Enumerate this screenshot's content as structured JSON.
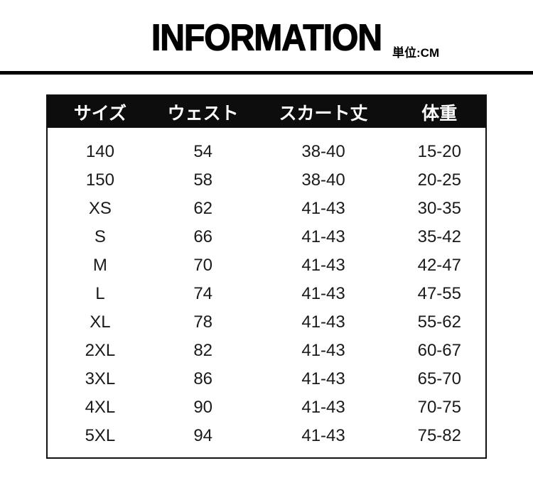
{
  "title": "INFORMATION",
  "unit_label": "単位:CM",
  "chart_data": {
    "type": "table",
    "title": "INFORMATION",
    "unit": "単位:CM",
    "columns": [
      "サイズ",
      "ウェスト",
      "スカート丈",
      "体重"
    ],
    "rows": [
      [
        "140",
        "54",
        "38-40",
        "15-20"
      ],
      [
        "150",
        "58",
        "38-40",
        "20-25"
      ],
      [
        "XS",
        "62",
        "41-43",
        "30-35"
      ],
      [
        "S",
        "66",
        "41-43",
        "35-42"
      ],
      [
        "M",
        "70",
        "41-43",
        "42-47"
      ],
      [
        "L",
        "74",
        "41-43",
        "47-55"
      ],
      [
        "XL",
        "78",
        "41-43",
        "55-62"
      ],
      [
        "2XL",
        "82",
        "41-43",
        "60-67"
      ],
      [
        "3XL",
        "86",
        "41-43",
        "65-70"
      ],
      [
        "4XL",
        "90",
        "41-43",
        "70-75"
      ],
      [
        "5XL",
        "94",
        "41-43",
        "75-82"
      ]
    ],
    "layout": {
      "header_position": "top",
      "grid": "outer-border-only"
    }
  },
  "colors": {
    "background": "#ffffff",
    "title_text": "#000000",
    "divider": "#000000",
    "header_bg": "#0d0d0d",
    "header_text": "#ffffff",
    "body_text": "#1a1a1a",
    "table_border": "#111111"
  }
}
